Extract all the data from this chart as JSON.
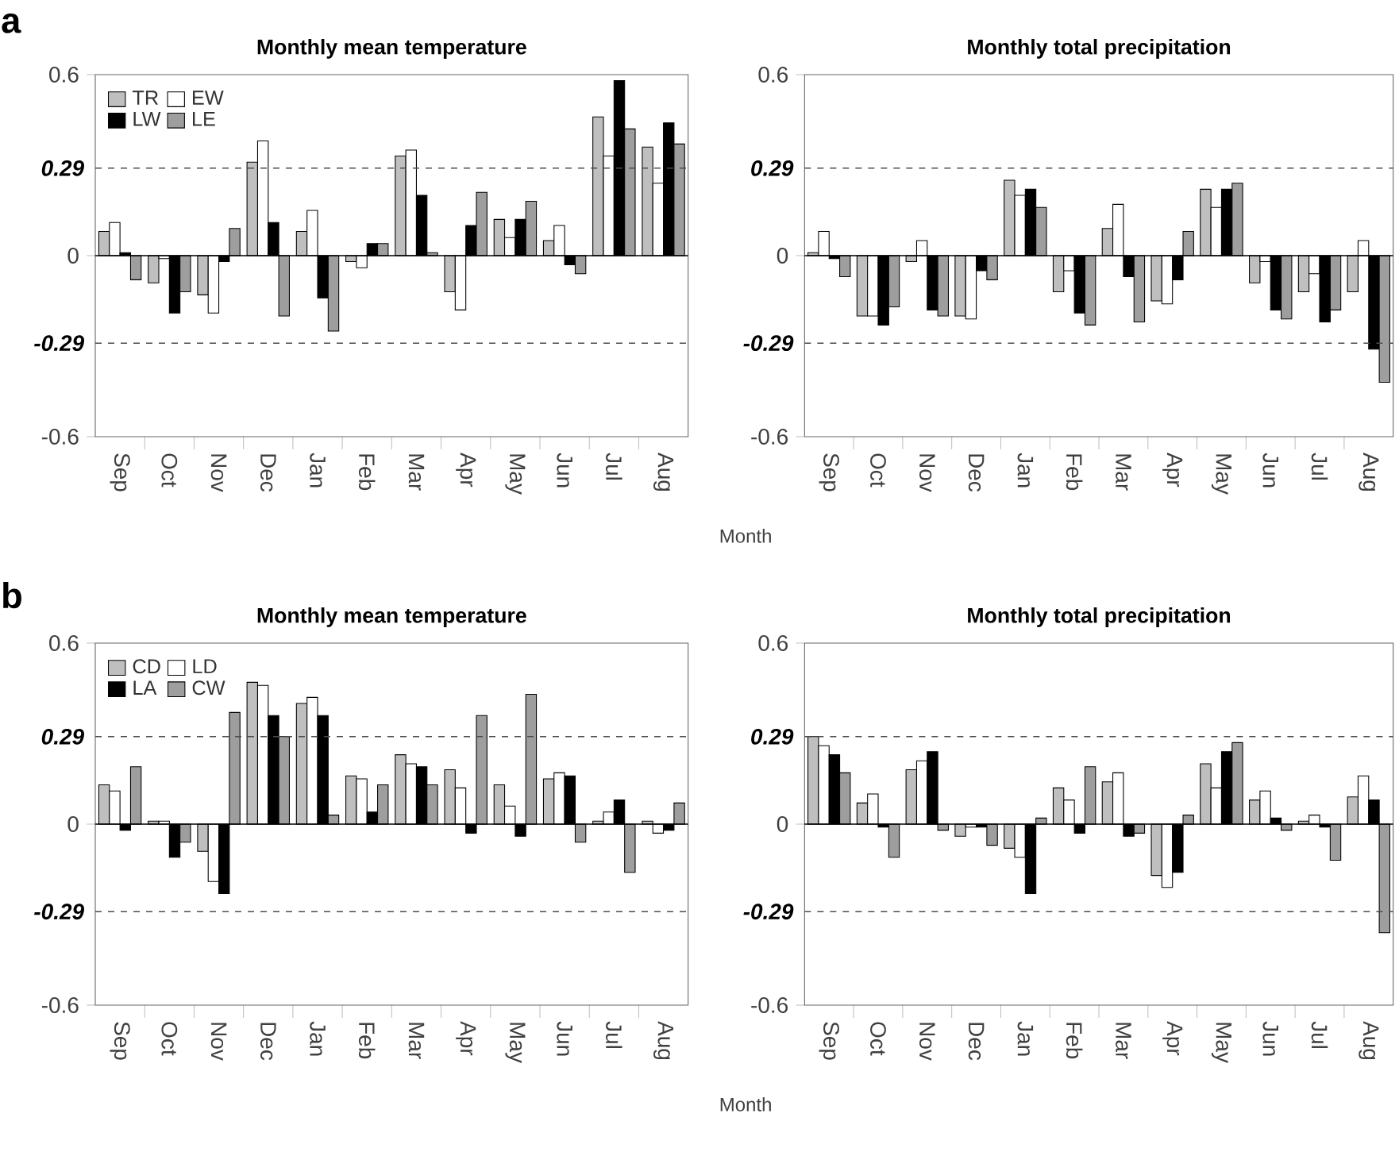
{
  "chart_data": [
    {
      "type": "bar",
      "title": "Monthly mean temperature",
      "xlabel": "Month",
      "annotations": [
        "a"
      ],
      "categories": [
        "Sep",
        "Oct",
        "Nov",
        "Dec",
        "Jan",
        "Feb",
        "Mar",
        "Apr",
        "May",
        "Jun",
        "Jul",
        "Aug"
      ],
      "ylim": [
        -0.6,
        0.6
      ],
      "yticks": [
        -0.6,
        0,
        0.6
      ],
      "legend": "top left",
      "ref_lines": [
        {
          "axis": "y",
          "value": 0.29,
          "label": "0.29",
          "line_style": "dashed"
        },
        {
          "axis": "y",
          "value": -0.29,
          "label": "-0.29",
          "line_style": "dashed"
        }
      ],
      "series": [
        {
          "name": "TR",
          "color": "#bfbfbf",
          "values": [
            0.08,
            -0.09,
            -0.13,
            0.31,
            0.08,
            -0.02,
            0.33,
            -0.12,
            0.12,
            0.05,
            0.46,
            0.36
          ]
        },
        {
          "name": "EW",
          "color": "#ffffff",
          "values": [
            0.11,
            -0.01,
            -0.19,
            0.38,
            0.15,
            -0.04,
            0.35,
            -0.18,
            0.06,
            0.1,
            0.33,
            0.24
          ]
        },
        {
          "name": "LW",
          "color": "#000000",
          "values": [
            0.01,
            -0.19,
            -0.02,
            0.11,
            -0.14,
            0.04,
            0.2,
            0.1,
            0.12,
            -0.03,
            0.58,
            0.44
          ]
        },
        {
          "name": "LE",
          "color": "#9e9e9e",
          "values": [
            -0.08,
            -0.12,
            0.09,
            -0.2,
            -0.25,
            0.04,
            0.01,
            0.21,
            0.18,
            -0.06,
            0.42,
            0.37
          ]
        }
      ]
    },
    {
      "type": "bar",
      "title": "Monthly total precipitation",
      "categories": [
        "Sep",
        "Oct",
        "Nov",
        "Dec",
        "Jan",
        "Feb",
        "Mar",
        "Apr",
        "May",
        "Jun",
        "Jul",
        "Aug"
      ],
      "ylim": [
        -0.6,
        0.6
      ],
      "yticks": [
        -0.6,
        0,
        0.6
      ],
      "ref_lines": [
        {
          "axis": "y",
          "value": 0.29,
          "label": "0.29",
          "line_style": "dashed"
        },
        {
          "axis": "y",
          "value": -0.29,
          "label": "-0.29",
          "line_style": "dashed"
        }
      ],
      "series": [
        {
          "color": "#bfbfbf",
          "values": [
            0.01,
            -0.2,
            -0.02,
            -0.2,
            0.25,
            -0.12,
            0.09,
            -0.15,
            0.22,
            -0.09,
            -0.12,
            -0.12
          ]
        },
        {
          "color": "#ffffff",
          "values": [
            0.08,
            -0.2,
            0.05,
            -0.21,
            0.2,
            -0.05,
            0.17,
            -0.16,
            0.16,
            -0.02,
            -0.06,
            0.05
          ]
        },
        {
          "color": "#000000",
          "values": [
            -0.01,
            -0.23,
            -0.18,
            -0.05,
            0.22,
            -0.19,
            -0.07,
            -0.08,
            0.22,
            -0.18,
            -0.22,
            -0.31
          ]
        },
        {
          "color": "#9e9e9e",
          "values": [
            -0.07,
            -0.17,
            -0.2,
            -0.08,
            0.16,
            -0.23,
            -0.22,
            0.08,
            0.24,
            -0.21,
            -0.18,
            -0.42
          ]
        }
      ]
    },
    {
      "type": "bar",
      "title": "Monthly mean temperature",
      "xlabel": "Month",
      "annotations": [
        "b"
      ],
      "categories": [
        "Sep",
        "Oct",
        "Nov",
        "Dec",
        "Jan",
        "Feb",
        "Mar",
        "Apr",
        "May",
        "Jun",
        "Jul",
        "Aug"
      ],
      "ylim": [
        -0.6,
        0.6
      ],
      "yticks": [
        -0.6,
        0,
        0.6
      ],
      "legend": "top left",
      "ref_lines": [
        {
          "axis": "y",
          "value": 0.29,
          "label": "0.29",
          "line_style": "dashed"
        },
        {
          "axis": "y",
          "value": -0.29,
          "label": "-0.29",
          "line_style": "dashed"
        }
      ],
      "series": [
        {
          "name": "CD",
          "color": "#bfbfbf",
          "values": [
            0.13,
            0.01,
            -0.09,
            0.47,
            0.4,
            0.16,
            0.23,
            0.18,
            0.13,
            0.15,
            0.01,
            0.01
          ]
        },
        {
          "name": "LD",
          "color": "#ffffff",
          "values": [
            0.11,
            0.01,
            -0.19,
            0.46,
            0.42,
            0.15,
            0.2,
            0.12,
            0.06,
            0.17,
            0.04,
            -0.03
          ]
        },
        {
          "name": "LA",
          "color": "#000000",
          "values": [
            -0.02,
            -0.11,
            -0.23,
            0.36,
            0.36,
            0.04,
            0.19,
            -0.03,
            -0.04,
            0.16,
            0.08,
            -0.02
          ]
        },
        {
          "name": "CW",
          "color": "#9e9e9e",
          "values": [
            0.19,
            -0.06,
            0.37,
            0.29,
            0.03,
            0.13,
            0.13,
            0.36,
            0.43,
            -0.06,
            -0.16,
            0.07
          ]
        }
      ]
    },
    {
      "type": "bar",
      "title": "Monthly total precipitation",
      "categories": [
        "Sep",
        "Oct",
        "Nov",
        "Dec",
        "Jan",
        "Feb",
        "Mar",
        "Apr",
        "May",
        "Jun",
        "Jul",
        "Aug"
      ],
      "ylim": [
        -0.6,
        0.6
      ],
      "yticks": [
        -0.6,
        0,
        0.6
      ],
      "ref_lines": [
        {
          "axis": "y",
          "value": 0.29,
          "label": "0.29",
          "line_style": "dashed"
        },
        {
          "axis": "y",
          "value": -0.29,
          "label": "-0.29",
          "line_style": "dashed"
        }
      ],
      "series": [
        {
          "color": "#bfbfbf",
          "values": [
            0.29,
            0.07,
            0.18,
            -0.04,
            -0.08,
            0.12,
            0.14,
            -0.17,
            0.2,
            0.08,
            0.01,
            0.09
          ]
        },
        {
          "color": "#ffffff",
          "values": [
            0.26,
            0.1,
            0.21,
            -0.01,
            -0.11,
            0.08,
            0.17,
            -0.21,
            0.12,
            0.11,
            0.03,
            0.16
          ]
        },
        {
          "color": "#000000",
          "values": [
            0.23,
            -0.01,
            0.24,
            -0.01,
            -0.23,
            -0.03,
            -0.04,
            -0.16,
            0.24,
            0.02,
            -0.01,
            0.08
          ]
        },
        {
          "color": "#9e9e9e",
          "values": [
            0.17,
            -0.11,
            -0.02,
            -0.07,
            0.02,
            0.19,
            -0.03,
            0.03,
            0.27,
            -0.02,
            -0.12,
            -0.36
          ]
        }
      ]
    }
  ]
}
